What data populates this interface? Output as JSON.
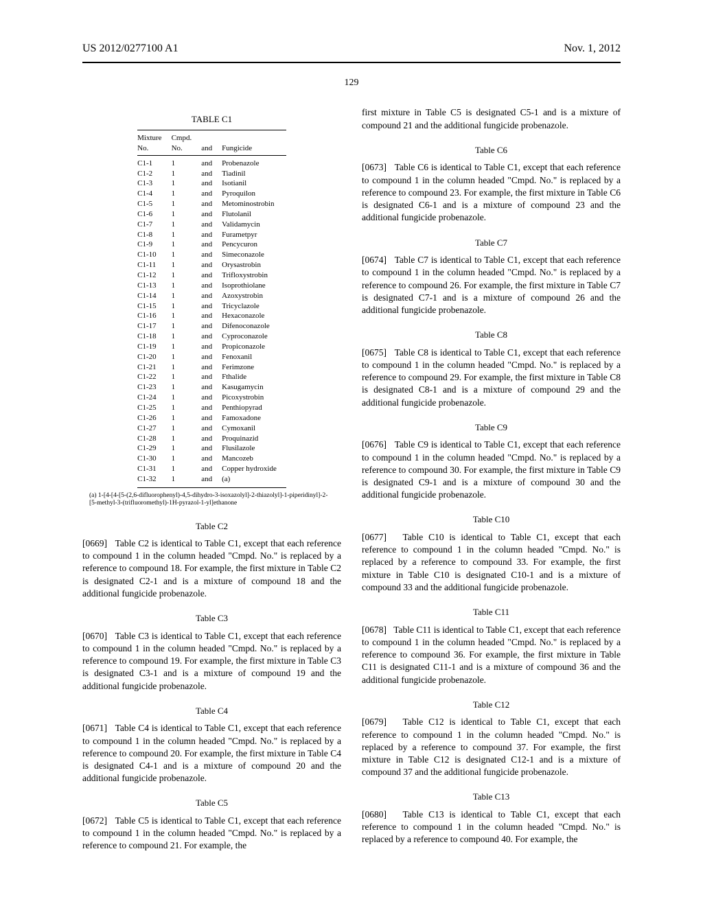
{
  "header": {
    "pub_number": "US 2012/0277100 A1",
    "pub_date": "Nov. 1, 2012"
  },
  "page_number": "129",
  "table_c1": {
    "title": "TABLE C1",
    "headers": {
      "c1": "Mixture\nNo.",
      "c2": "Cmpd.\nNo.",
      "c3": "and",
      "c4": "Fungicide"
    },
    "rows": [
      {
        "m": "C1-1",
        "c": "1",
        "a": "and",
        "f": "Probenazole"
      },
      {
        "m": "C1-2",
        "c": "1",
        "a": "and",
        "f": "Tiadinil"
      },
      {
        "m": "C1-3",
        "c": "1",
        "a": "and",
        "f": "Isotianil"
      },
      {
        "m": "C1-4",
        "c": "1",
        "a": "and",
        "f": "Pyroquilon"
      },
      {
        "m": "C1-5",
        "c": "1",
        "a": "and",
        "f": "Metominostrobin"
      },
      {
        "m": "C1-6",
        "c": "1",
        "a": "and",
        "f": "Flutolanil"
      },
      {
        "m": "C1-7",
        "c": "1",
        "a": "and",
        "f": "Validamycin"
      },
      {
        "m": "C1-8",
        "c": "1",
        "a": "and",
        "f": "Furametpyr"
      },
      {
        "m": "C1-9",
        "c": "1",
        "a": "and",
        "f": "Pencycuron"
      },
      {
        "m": "C1-10",
        "c": "1",
        "a": "and",
        "f": "Simeconazole"
      },
      {
        "m": "C1-11",
        "c": "1",
        "a": "and",
        "f": "Orysastrobin"
      },
      {
        "m": "C1-12",
        "c": "1",
        "a": "and",
        "f": "Trifloxystrobin"
      },
      {
        "m": "C1-13",
        "c": "1",
        "a": "and",
        "f": "Isoprothiolane"
      },
      {
        "m": "C1-14",
        "c": "1",
        "a": "and",
        "f": "Azoxystrobin"
      },
      {
        "m": "C1-15",
        "c": "1",
        "a": "and",
        "f": "Tricyclazole"
      },
      {
        "m": "C1-16",
        "c": "1",
        "a": "and",
        "f": "Hexaconazole"
      },
      {
        "m": "C1-17",
        "c": "1",
        "a": "and",
        "f": "Difenoconazole"
      },
      {
        "m": "C1-18",
        "c": "1",
        "a": "and",
        "f": "Cyproconazole"
      },
      {
        "m": "C1-19",
        "c": "1",
        "a": "and",
        "f": "Propiconazole"
      },
      {
        "m": "C1-20",
        "c": "1",
        "a": "and",
        "f": "Fenoxanil"
      },
      {
        "m": "C1-21",
        "c": "1",
        "a": "and",
        "f": "Ferimzone"
      },
      {
        "m": "C1-22",
        "c": "1",
        "a": "and",
        "f": "Fthalide"
      },
      {
        "m": "C1-23",
        "c": "1",
        "a": "and",
        "f": "Kasugamycin"
      },
      {
        "m": "C1-24",
        "c": "1",
        "a": "and",
        "f": "Picoxystrobin"
      },
      {
        "m": "C1-25",
        "c": "1",
        "a": "and",
        "f": "Penthiopyrad"
      },
      {
        "m": "C1-26",
        "c": "1",
        "a": "and",
        "f": "Famoxadone"
      },
      {
        "m": "C1-27",
        "c": "1",
        "a": "and",
        "f": "Cymoxanil"
      },
      {
        "m": "C1-28",
        "c": "1",
        "a": "and",
        "f": "Proquinazid"
      },
      {
        "m": "C1-29",
        "c": "1",
        "a": "and",
        "f": "Flusilazole"
      },
      {
        "m": "C1-30",
        "c": "1",
        "a": "and",
        "f": "Mancozeb"
      },
      {
        "m": "C1-31",
        "c": "1",
        "a": "and",
        "f": "Copper hydroxide"
      },
      {
        "m": "C1-32",
        "c": "1",
        "a": "and",
        "f": "(a)"
      }
    ],
    "footnote": "(a) 1-[4-[4-[5-(2,6-difluorophenyl)-4,5-dihydro-3-isoxazolyl]-2-thiazolyl]-1-piperidinyl]-2-[5-methyl-3-(trifluoromethyl)-1H-pyrazol-1-yl]ethanone"
  },
  "left_sections": [
    {
      "heading": "Table C2",
      "num": "[0669]",
      "lead": "Table C2 is identical to Table C1, except that each reference to compound 1 in the column headed \"Cmpd. No.\" is replaced by a reference to compound 18. For example, the first mixture in Table C2 is designated C2-1 and is a mixture of compound 18 and the additional fungicide probenazole."
    },
    {
      "heading": "Table C3",
      "num": "[0670]",
      "lead": "Table C3 is identical to Table C1, except that each reference to compound 1 in the column headed \"Cmpd. No.\" is replaced by a reference to compound 19. For example, the first mixture in Table C3 is designated C3-1 and is a mixture of compound 19 and the additional fungicide probenazole."
    },
    {
      "heading": "Table C4",
      "num": "[0671]",
      "lead": "Table C4 is identical to Table C1, except that each reference to compound 1 in the column headed \"Cmpd. No.\" is replaced by a reference to compound 20. For example, the first mixture in Table C4 is designated C4-1 and is a mixture of compound 20 and the additional fungicide probenazole."
    },
    {
      "heading": "Table C5",
      "num": "[0672]",
      "lead": "Table C5 is identical to Table C1, except that each reference to compound 1 in the column headed \"Cmpd. No.\" is replaced by a reference to compound 21. For example, the"
    }
  ],
  "right_pre": "first mixture in Table C5 is designated C5-1 and is a mixture of compound 21 and the additional fungicide probenazole.",
  "right_sections": [
    {
      "heading": "Table C6",
      "num": "[0673]",
      "lead": "Table C6 is identical to Table C1, except that each reference to compound 1 in the column headed \"Cmpd. No.\" is replaced by a reference to compound 23. For example, the first mixture in Table C6 is designated C6-1 and is a mixture of compound 23 and the additional fungicide probenazole."
    },
    {
      "heading": "Table C7",
      "num": "[0674]",
      "lead": "Table C7 is identical to Table C1, except that each reference to compound 1 in the column headed \"Cmpd. No.\" is replaced by a reference to compound 26. For example, the first mixture in Table C7 is designated C7-1 and is a mixture of compound 26 and the additional fungicide probenazole."
    },
    {
      "heading": "Table C8",
      "num": "[0675]",
      "lead": "Table C8 is identical to Table C1, except that each reference to compound 1 in the column headed \"Cmpd. No.\" is replaced by a reference to compound 29. For example, the first mixture in Table C8 is designated C8-1 and is a mixture of compound 29 and the additional fungicide probenazole."
    },
    {
      "heading": "Table C9",
      "num": "[0676]",
      "lead": "Table C9 is identical to Table C1, except that each reference to compound 1 in the column headed \"Cmpd. No.\" is replaced by a reference to compound 30. For example, the first mixture in Table C9 is designated C9-1 and is a mixture of compound 30 and the additional fungicide probenazole."
    },
    {
      "heading": "Table C10",
      "num": "[0677]",
      "lead": "Table C10 is identical to Table C1, except that each reference to compound 1 in the column headed \"Cmpd. No.\" is replaced by a reference to compound 33. For example, the first mixture in Table C10 is designated C10-1 and is a mixture of compound 33 and the additional fungicide probenazole."
    },
    {
      "heading": "Table C11",
      "num": "[0678]",
      "lead": "Table C11 is identical to Table C1, except that each reference to compound 1 in the column headed \"Cmpd. No.\" is replaced by a reference to compound 36. For example, the first mixture in Table C11 is designated C11-1 and is a mixture of compound 36 and the additional fungicide probenazole."
    },
    {
      "heading": "Table C12",
      "num": "[0679]",
      "lead": "Table C12 is identical to Table C1, except that each reference to compound 1 in the column headed \"Cmpd. No.\" is replaced by a reference to compound 37. For example, the first mixture in Table C12 is designated C12-1 and is a mixture of compound 37 and the additional fungicide probenazole."
    },
    {
      "heading": "Table C13",
      "num": "[0680]",
      "lead": "Table C13 is identical to Table C1, except that each reference to compound 1 in the column headed \"Cmpd. No.\" is replaced by a reference to compound 40. For example, the"
    }
  ]
}
